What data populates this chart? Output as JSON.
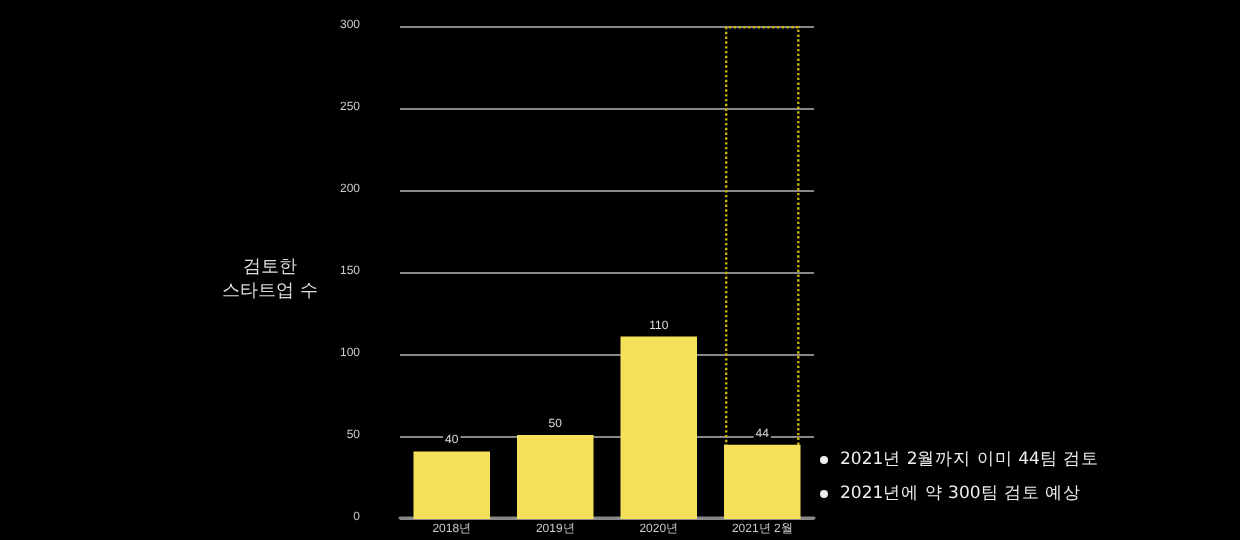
{
  "chart_data": {
    "type": "bar",
    "ylabel": "검토한\n스타트업 수",
    "categories": [
      "2018년",
      "2019년",
      "2020년",
      "2021년 2월"
    ],
    "series": [
      {
        "color": "#f5e05a",
        "values": [
          40,
          50,
          110,
          44
        ],
        "value_labels": [
          "40",
          "50",
          "110",
          "44"
        ]
      },
      {
        "color": "#c8b400",
        "values": [
          null,
          null,
          null,
          300
        ],
        "line_style": "dotted"
      }
    ],
    "ylim": [
      0,
      300
    ],
    "yticks": [
      0,
      50,
      100,
      150,
      200,
      250,
      300
    ],
    "grid": "y",
    "annotations": [
      "2021년 2월까지 이미 44팀 검토",
      "2021년에 약 300팀 검토 예상"
    ]
  }
}
